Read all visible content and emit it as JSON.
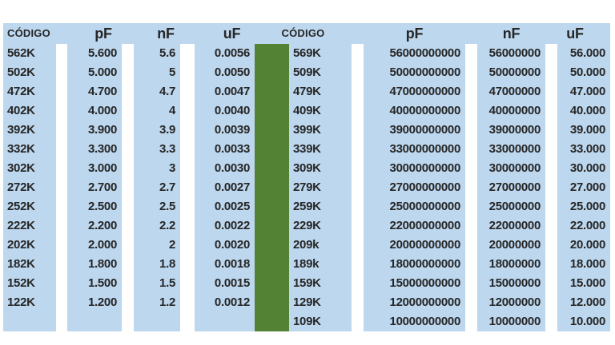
{
  "colors": {
    "cell_blue": "#BDD7EE",
    "divider_green": "#548235",
    "gap_white": "#FFFFFF",
    "text": "#262626"
  },
  "table": {
    "headers": {
      "l_code": "CÓDIGO",
      "l_pf": "pF",
      "l_nf": "nF",
      "l_uf": "uF",
      "r_code": "CÓDIGO",
      "r_pf": "pF",
      "r_nf": "nF",
      "r_uf": "uF"
    },
    "rows": [
      {
        "l_code": "562K",
        "l_pf": "5.600",
        "l_nf": "5.6",
        "l_uf": "0.0056",
        "r_code": "569K",
        "r_pf": "56000000000",
        "r_nf": "56000000",
        "r_uf": "56.000"
      },
      {
        "l_code": "502K",
        "l_pf": "5.000",
        "l_nf": "5",
        "l_uf": "0.0050",
        "r_code": "509K",
        "r_pf": "50000000000",
        "r_nf": "50000000",
        "r_uf": "50.000"
      },
      {
        "l_code": "472K",
        "l_pf": "4.700",
        "l_nf": "4.7",
        "l_uf": "0.0047",
        "r_code": "479K",
        "r_pf": "47000000000",
        "r_nf": "47000000",
        "r_uf": "47.000"
      },
      {
        "l_code": "402K",
        "l_pf": "4.000",
        "l_nf": "4",
        "l_uf": "0.0040",
        "r_code": "409K",
        "r_pf": "40000000000",
        "r_nf": "40000000",
        "r_uf": "40.000"
      },
      {
        "l_code": "392K",
        "l_pf": "3.900",
        "l_nf": "3.9",
        "l_uf": "0.0039",
        "r_code": "399K",
        "r_pf": "39000000000",
        "r_nf": "39000000",
        "r_uf": "39.000"
      },
      {
        "l_code": "332K",
        "l_pf": "3.300",
        "l_nf": "3.3",
        "l_uf": "0.0033",
        "r_code": "339K",
        "r_pf": "33000000000",
        "r_nf": "33000000",
        "r_uf": "33.000"
      },
      {
        "l_code": "302K",
        "l_pf": "3.000",
        "l_nf": "3",
        "l_uf": "0.0030",
        "r_code": "309K",
        "r_pf": "30000000000",
        "r_nf": "30000000",
        "r_uf": "30.000"
      },
      {
        "l_code": "272K",
        "l_pf": "2.700",
        "l_nf": "2.7",
        "l_uf": "0.0027",
        "r_code": "279K",
        "r_pf": "27000000000",
        "r_nf": "27000000",
        "r_uf": "27.000"
      },
      {
        "l_code": "252K",
        "l_pf": "2.500",
        "l_nf": "2.5",
        "l_uf": "0.0025",
        "r_code": "259K",
        "r_pf": "25000000000",
        "r_nf": "25000000",
        "r_uf": "25.000"
      },
      {
        "l_code": "222K",
        "l_pf": "2.200",
        "l_nf": "2.2",
        "l_uf": "0.0022",
        "r_code": "229K",
        "r_pf": "22000000000",
        "r_nf": "22000000",
        "r_uf": "22.000"
      },
      {
        "l_code": "202K",
        "l_pf": "2.000",
        "l_nf": "2",
        "l_uf": "0.0020",
        "r_code": "209k",
        "r_pf": "20000000000",
        "r_nf": "20000000",
        "r_uf": "20.000"
      },
      {
        "l_code": "182K",
        "l_pf": "1.800",
        "l_nf": "1.8",
        "l_uf": "0.0018",
        "r_code": "189k",
        "r_pf": "18000000000",
        "r_nf": "18000000",
        "r_uf": "18.000"
      },
      {
        "l_code": "152K",
        "l_pf": "1.500",
        "l_nf": "1.5",
        "l_uf": "0.0015",
        "r_code": "159K",
        "r_pf": "15000000000",
        "r_nf": "15000000",
        "r_uf": "15.000"
      },
      {
        "l_code": "122K",
        "l_pf": "1.200",
        "l_nf": "1.2",
        "l_uf": "0.0012",
        "r_code": "129K",
        "r_pf": "12000000000",
        "r_nf": "12000000",
        "r_uf": "12.000"
      },
      {
        "l_code": "",
        "l_pf": "",
        "l_nf": "",
        "l_uf": "",
        "r_code": "109K",
        "r_pf": "10000000000",
        "r_nf": "10000000",
        "r_uf": "10.000"
      }
    ]
  }
}
